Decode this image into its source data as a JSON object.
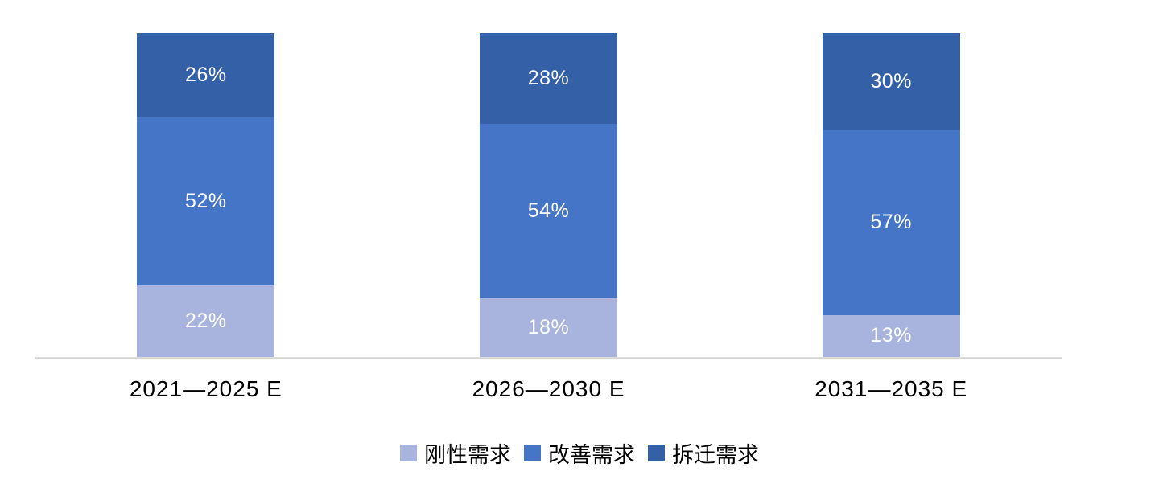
{
  "chart_data": {
    "type": "bar",
    "stacked": true,
    "percent_stacked": true,
    "unit": "%",
    "title": "",
    "xlabel": "",
    "ylabel": "",
    "ylim": [
      0,
      100
    ],
    "grid": false,
    "legend_position": "bottom",
    "axis_line_color": "#D9D9D9",
    "data_label_color": "#FFFFFF",
    "categories": [
      "2021—2025 E",
      "2026—2030 E",
      "2031—2035 E"
    ],
    "series": [
      {
        "name": "刚性需求",
        "color": "#A8B4DE",
        "values": [
          22,
          18,
          13
        ]
      },
      {
        "name": "改善需求",
        "color": "#4575C7",
        "values": [
          52,
          54,
          57
        ]
      },
      {
        "name": "拆迁需求",
        "color": "#3460A8",
        "values": [
          26,
          28,
          30
        ]
      }
    ]
  }
}
